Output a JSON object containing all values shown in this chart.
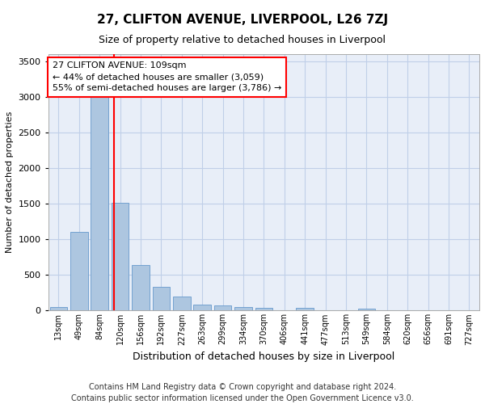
{
  "title": "27, CLIFTON AVENUE, LIVERPOOL, L26 7ZJ",
  "subtitle": "Size of property relative to detached houses in Liverpool",
  "xlabel": "Distribution of detached houses by size in Liverpool",
  "ylabel": "Number of detached properties",
  "footnote": "Contains HM Land Registry data © Crown copyright and database right 2024.\nContains public sector information licensed under the Open Government Licence v3.0.",
  "bar_labels": [
    "13sqm",
    "49sqm",
    "84sqm",
    "120sqm",
    "156sqm",
    "192sqm",
    "227sqm",
    "263sqm",
    "299sqm",
    "334sqm",
    "370sqm",
    "406sqm",
    "441sqm",
    "477sqm",
    "513sqm",
    "549sqm",
    "584sqm",
    "620sqm",
    "656sqm",
    "691sqm",
    "727sqm"
  ],
  "bar_values": [
    55,
    1100,
    3050,
    1510,
    640,
    330,
    195,
    85,
    75,
    55,
    40,
    10,
    35,
    5,
    5,
    30,
    5,
    5,
    5,
    5,
    5
  ],
  "bar_color": "#adc6e0",
  "bar_edge_color": "#6699cc",
  "grid_color": "#c0cfe8",
  "bg_color": "#e8eef8",
  "red_line_x": 2.72,
  "annotation_text": "27 CLIFTON AVENUE: 109sqm\n← 44% of detached houses are smaller (3,059)\n55% of semi-detached houses are larger (3,786) →",
  "ylim": [
    0,
    3600
  ],
  "yticks": [
    0,
    500,
    1000,
    1500,
    2000,
    2500,
    3000,
    3500
  ],
  "title_fontsize": 11,
  "subtitle_fontsize": 9,
  "ylabel_fontsize": 8,
  "xlabel_fontsize": 9,
  "tick_fontsize": 8,
  "xtick_fontsize": 7,
  "footnote_fontsize": 7
}
